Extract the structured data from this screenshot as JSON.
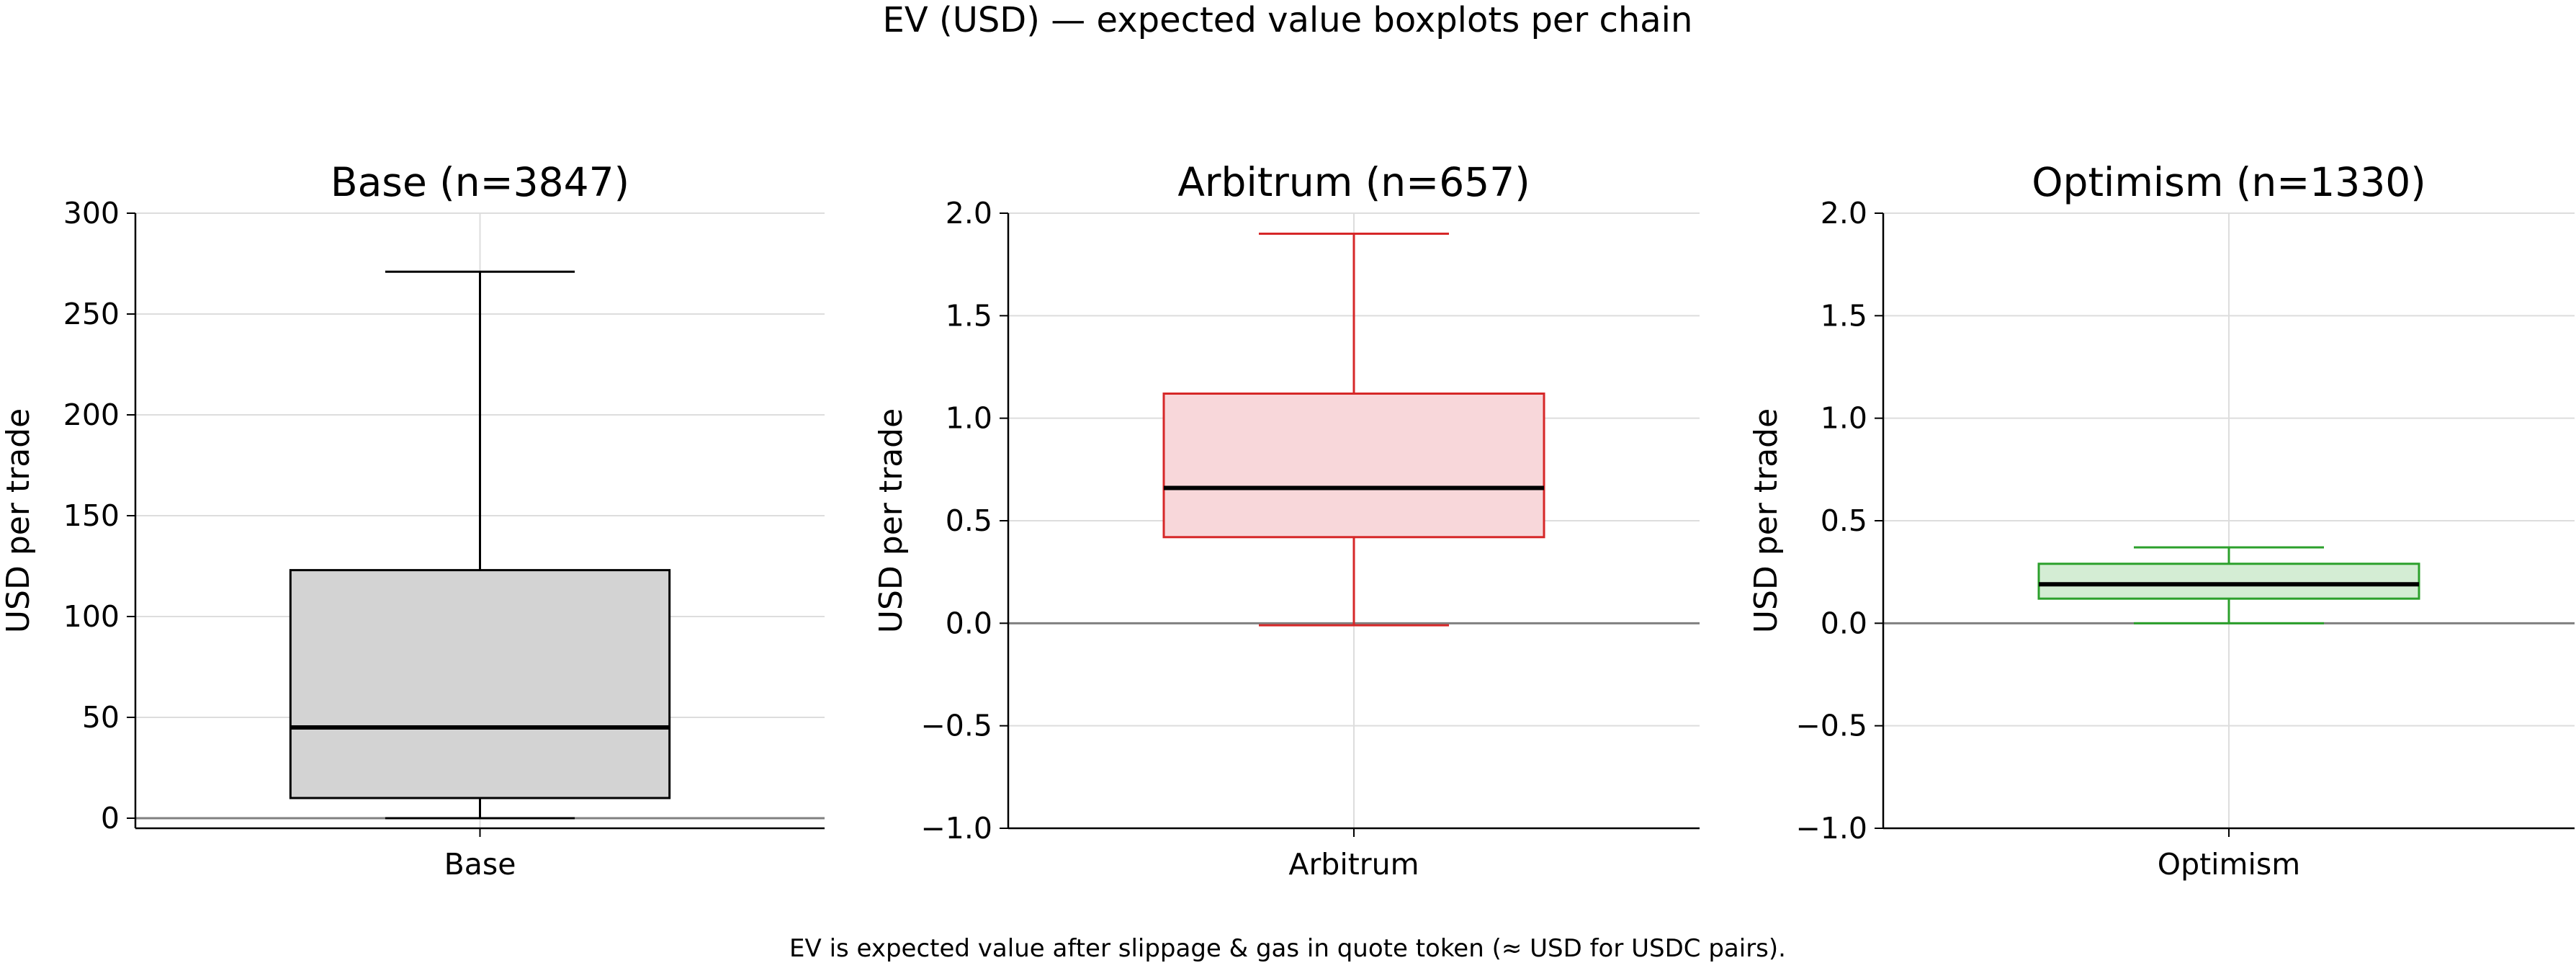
{
  "suptitle": "EV (USD) — expected value boxplots per chain",
  "footnote": "EV is expected value after slippage & gas in quote token (≈ USD for USDC pairs).",
  "chart_data": [
    {
      "type": "boxplot",
      "title": "Base  (n=3847)",
      "ylabel": "USD per trade",
      "categories": [
        "Base"
      ],
      "ylim": [
        -5,
        300
      ],
      "yticks": [
        0,
        50,
        100,
        150,
        200,
        250,
        300
      ],
      "ytick_labels": [
        "0",
        "50",
        "100",
        "150",
        "200",
        "250",
        "300"
      ],
      "grid": true,
      "reference_line": 0,
      "color": "#000000",
      "fill": "#d3d3d3",
      "box": {
        "whisker_low": 0,
        "q1": 10,
        "median": 45,
        "q3": 123,
        "whisker_high": 271
      }
    },
    {
      "type": "boxplot",
      "title": "Arbitrum  (n=657)",
      "ylabel": "USD per trade",
      "categories": [
        "Arbitrum"
      ],
      "ylim": [
        -1.0,
        2.0
      ],
      "yticks": [
        -1.0,
        -0.5,
        0.0,
        0.5,
        1.0,
        1.5,
        2.0
      ],
      "ytick_labels": [
        "−1.0",
        "−0.5",
        "0.0",
        "0.5",
        "1.0",
        "1.5",
        "2.0"
      ],
      "grid": true,
      "reference_line": 0,
      "color": "#d62728",
      "fill": "#f8d7da",
      "box": {
        "whisker_low": -0.01,
        "q1": 0.42,
        "median": 0.66,
        "q3": 1.12,
        "whisker_high": 1.9
      }
    },
    {
      "type": "boxplot",
      "title": "Optimism  (n=1330)",
      "ylabel": "USD per trade",
      "categories": [
        "Optimism"
      ],
      "ylim": [
        -1.0,
        2.0
      ],
      "yticks": [
        -1.0,
        -0.5,
        0.0,
        0.5,
        1.0,
        1.5,
        2.0
      ],
      "ytick_labels": [
        "−1.0",
        "−0.5",
        "0.0",
        "0.5",
        "1.0",
        "1.5",
        "2.0"
      ],
      "grid": true,
      "reference_line": 0,
      "color": "#2ca02c",
      "fill": "#d4edd4",
      "box": {
        "whisker_low": 0.0,
        "q1": 0.12,
        "median": 0.19,
        "q3": 0.29,
        "whisker_high": 0.37
      }
    }
  ]
}
